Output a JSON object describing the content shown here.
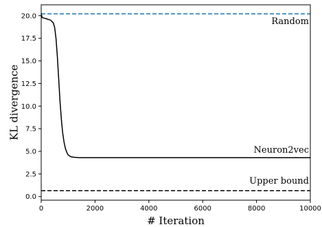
{
  "chart_data": {
    "type": "line",
    "xlabel": "# Iteration",
    "ylabel": "KL divergence",
    "xlim": [
      0,
      10000
    ],
    "ylim": [
      -0.4,
      21.2
    ],
    "xticks": [
      0,
      2000,
      4000,
      6000,
      8000,
      10000
    ],
    "xtick_labels": [
      "0",
      "2000",
      "4000",
      "6000",
      "8000",
      "10000"
    ],
    "yticks": [
      0.0,
      2.5,
      5.0,
      7.5,
      10.0,
      12.5,
      15.0,
      17.5,
      20.0
    ],
    "ytick_labels": [
      "0.0",
      "2.5",
      "5.0",
      "7.5",
      "10.0",
      "12.5",
      "15.0",
      "17.5",
      "20.0"
    ],
    "grid": false,
    "series": [
      {
        "name": "Neuron2vec",
        "style": "solid",
        "color": "#000000",
        "x": [
          0,
          30,
          80,
          200,
          350,
          450,
          500,
          550,
          600,
          650,
          700,
          750,
          800,
          850,
          900,
          950,
          1000,
          1100,
          1200,
          1400,
          2000,
          4000,
          6000,
          8000,
          10000
        ],
        "y": [
          20.3,
          19.8,
          19.75,
          19.65,
          19.5,
          19.2,
          18.7,
          17.5,
          15.5,
          13.0,
          10.5,
          8.5,
          7.0,
          6.0,
          5.3,
          4.9,
          4.6,
          4.4,
          4.35,
          4.3,
          4.3,
          4.3,
          4.3,
          4.3,
          4.3
        ]
      },
      {
        "name": "Random",
        "style": "dashed",
        "color": "#1f77b4",
        "x": [
          0,
          10000
        ],
        "y": [
          20.2,
          20.2
        ]
      },
      {
        "name": "Upper bound",
        "style": "dashed",
        "color": "#000000",
        "x": [
          0,
          10000
        ],
        "y": [
          0.65,
          0.65
        ]
      }
    ]
  }
}
